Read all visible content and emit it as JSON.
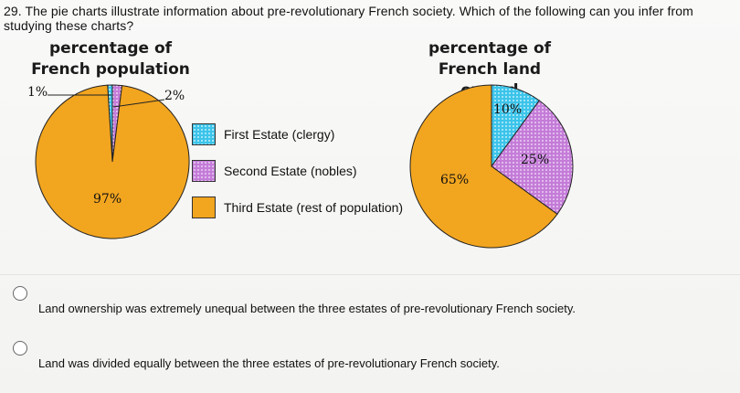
{
  "question": "29. The pie charts illustrate information about pre-revolutionary French society. Which of the following can you infer from studying these charts?",
  "legend": {
    "first": "First Estate (clergy)",
    "second": "Second Estate (nobles)",
    "third": "Third Estate (rest of population)"
  },
  "colors": {
    "first": "#3cc4ea",
    "second": "#c47cd8",
    "third": "#f2a51f"
  },
  "chart_data": [
    {
      "type": "pie",
      "title": "percentage of French population",
      "title_line1": "percentage of",
      "title_line2": "French population",
      "labels": [
        "First Estate (clergy)",
        "Second Estate (nobles)",
        "Third Estate (rest of population)"
      ],
      "values": [
        1,
        2,
        97
      ],
      "value_labels": [
        "1%",
        "2%",
        "97%"
      ]
    },
    {
      "type": "pie",
      "title": "percentage of French land owned",
      "title_line1": "percentage of",
      "title_line2": "French land owned",
      "labels": [
        "First Estate (clergy)",
        "Second Estate (nobles)",
        "Third Estate (rest of population)"
      ],
      "values": [
        10,
        25,
        65
      ],
      "value_labels": [
        "10%",
        "25%",
        "65%"
      ]
    }
  ],
  "choices": [
    "Land ownership was extremely unequal between the three estates of pre-revolutionary French society.",
    "Land was divided equally between the three estates of pre-revolutionary French society."
  ]
}
